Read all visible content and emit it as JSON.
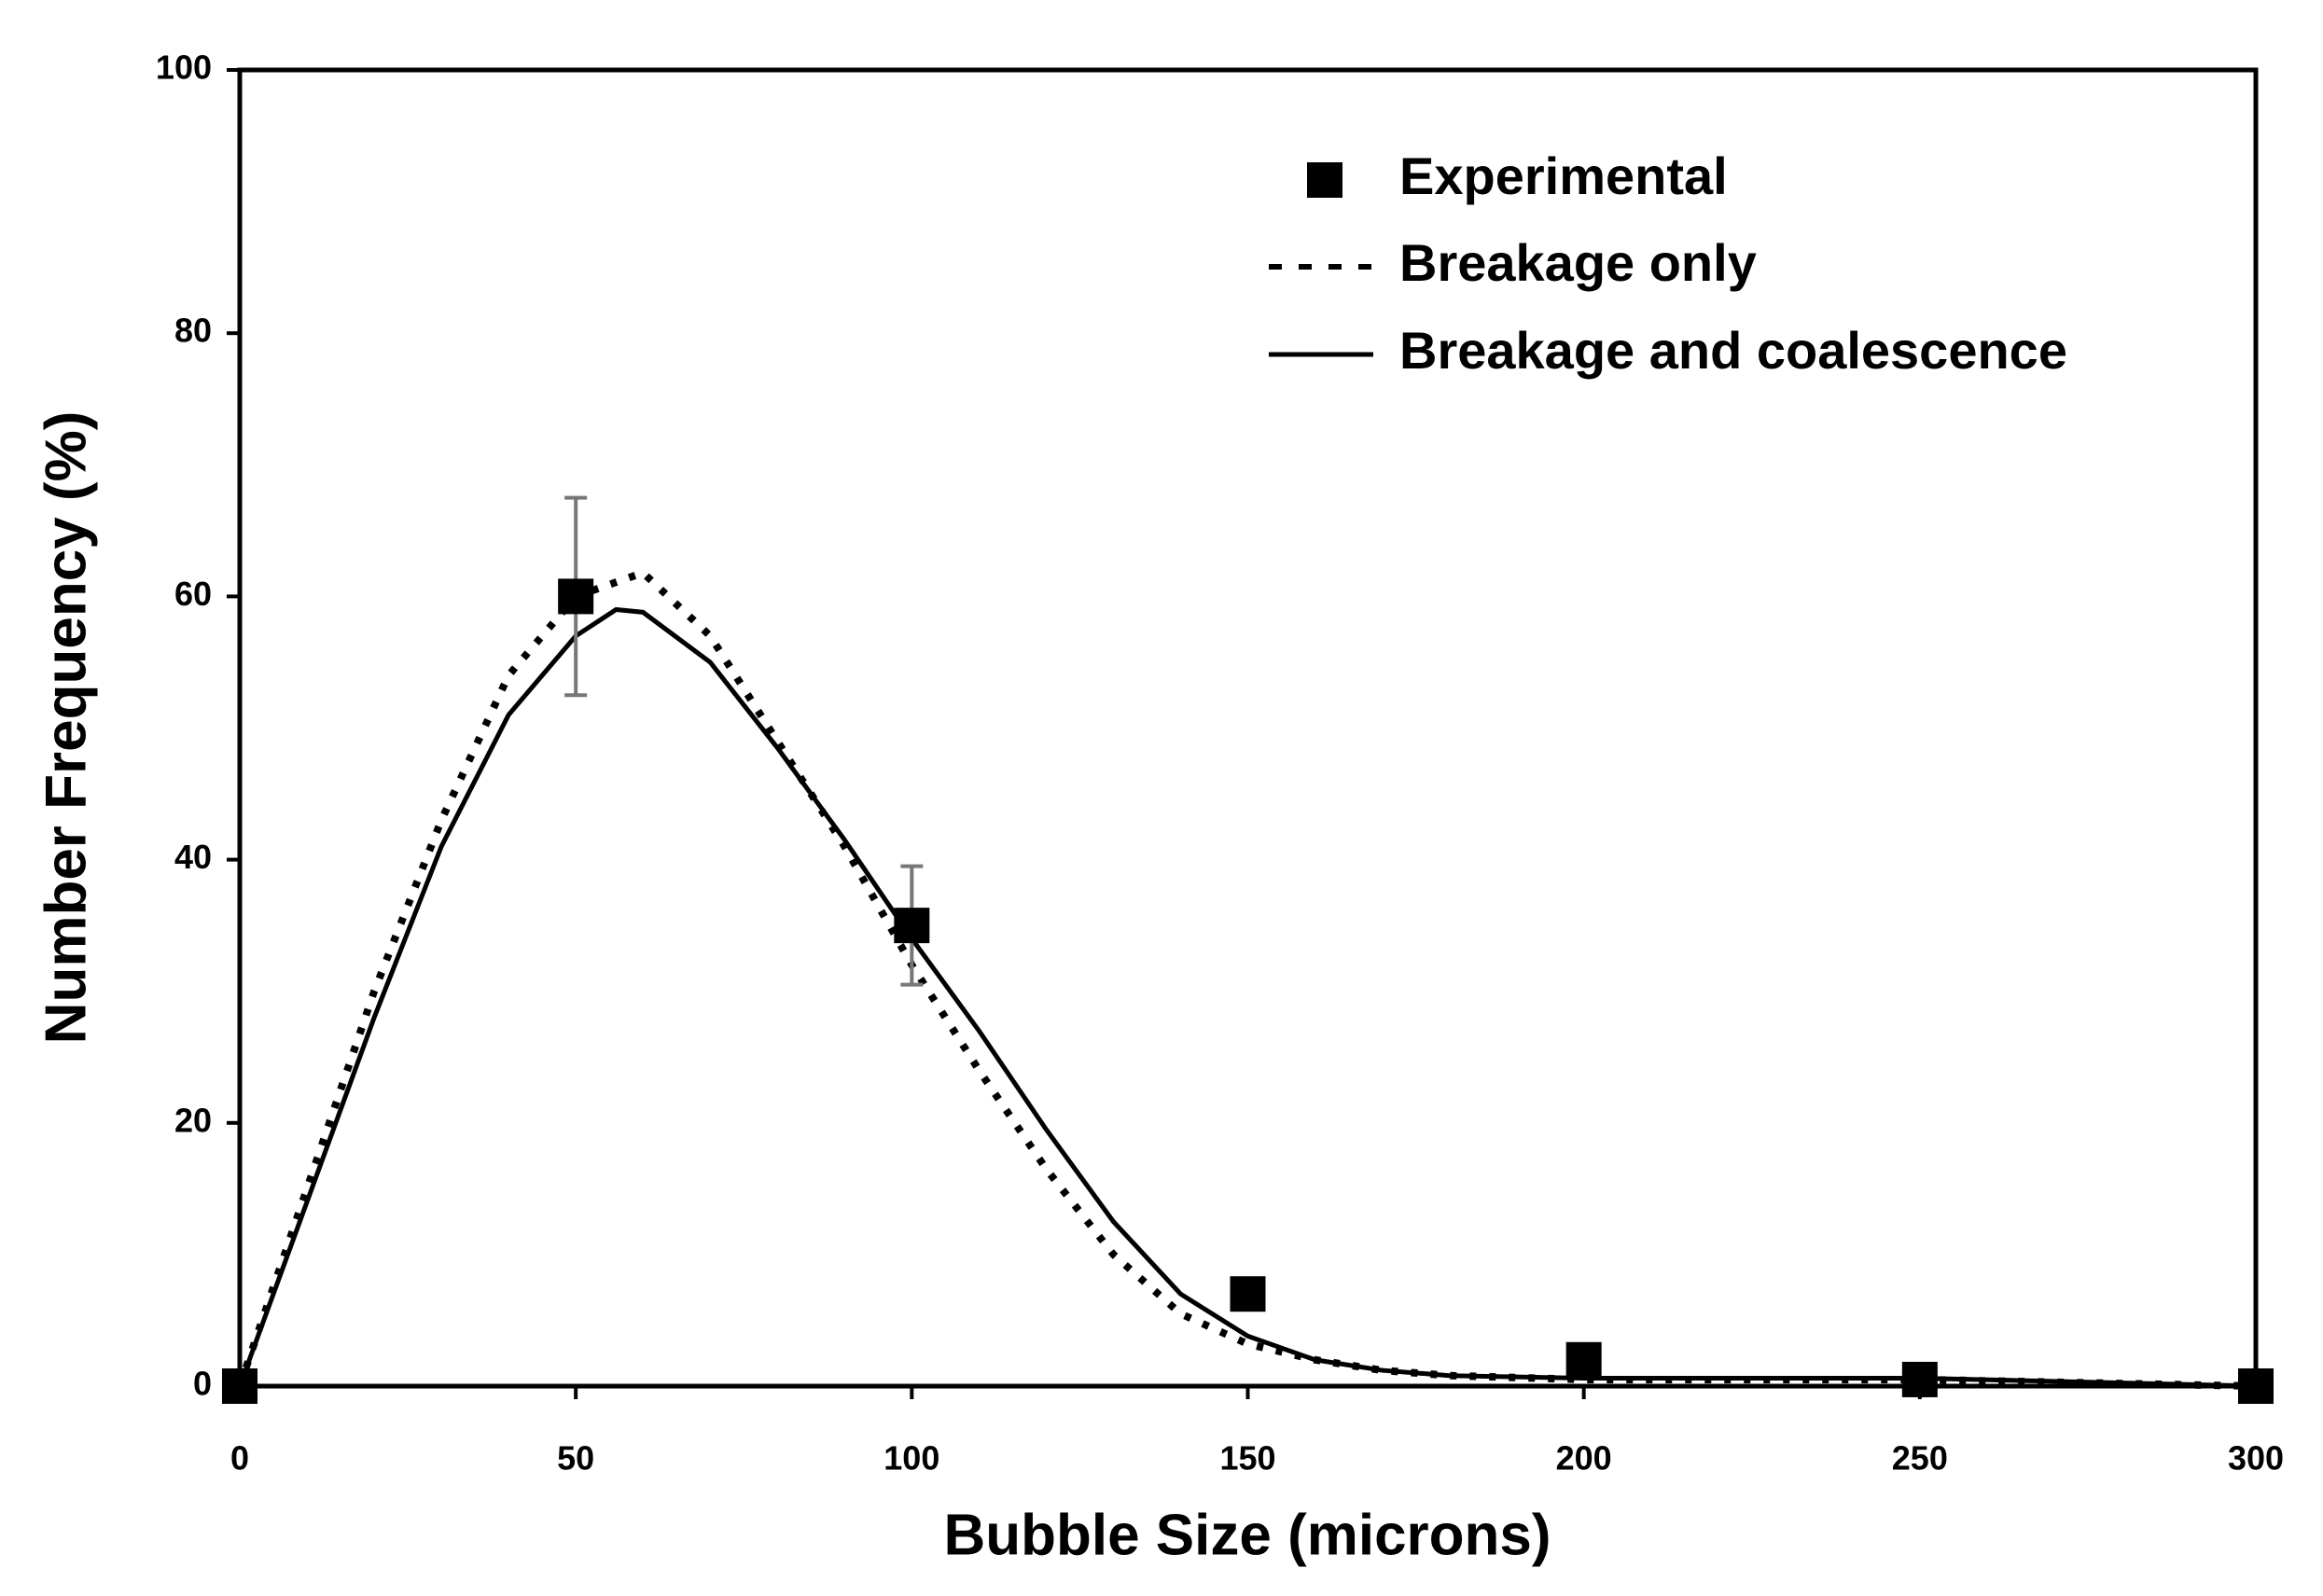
{
  "chart_data": {
    "type": "line",
    "xlabel": "Bubble Size (microns)",
    "ylabel": "Number Frequency (%)",
    "xlim": [
      0,
      300
    ],
    "xticks": [
      0,
      50,
      100,
      150,
      200,
      250,
      300
    ],
    "ylim": [
      0,
      100
    ],
    "yticks": [
      0,
      20,
      40,
      60,
      80,
      100
    ],
    "series": [
      {
        "name": "Experimental",
        "style": "markers",
        "color": "#000000",
        "x": [
          0,
          50,
          100,
          150,
          200,
          250,
          300
        ],
        "values": [
          0,
          60,
          35,
          7,
          2,
          0.5,
          0
        ],
        "errors": [
          null,
          7.5,
          4.5,
          null,
          null,
          null,
          null
        ]
      },
      {
        "name": "Breakage only",
        "style": "dotted",
        "color": "#000000",
        "x": [
          0,
          10,
          20,
          30,
          40,
          50,
          60,
          70,
          80,
          90,
          100,
          110,
          120,
          130,
          140,
          150,
          160,
          170,
          180,
          200,
          250,
          300
        ],
        "values": [
          0,
          15,
          30,
          43,
          54,
          60,
          61.8,
          57,
          49,
          41,
          32,
          24,
          16.5,
          10,
          5.5,
          3.2,
          2,
          1.2,
          0.8,
          0.5,
          0.5,
          0
        ]
      },
      {
        "name": "Breakage and coalescence",
        "style": "solid",
        "color": "#000000",
        "x": [
          0,
          10,
          20,
          30,
          40,
          50,
          56,
          60,
          70,
          80,
          90,
          100,
          110,
          120,
          130,
          140,
          150,
          160,
          170,
          180,
          200,
          250,
          300
        ],
        "values": [
          0,
          14,
          28,
          41,
          51,
          57,
          59,
          58.8,
          55,
          48.5,
          41.5,
          34,
          27,
          19.5,
          12.5,
          7,
          3.8,
          2,
          1.2,
          0.8,
          0.6,
          0.6,
          0
        ]
      }
    ]
  }
}
